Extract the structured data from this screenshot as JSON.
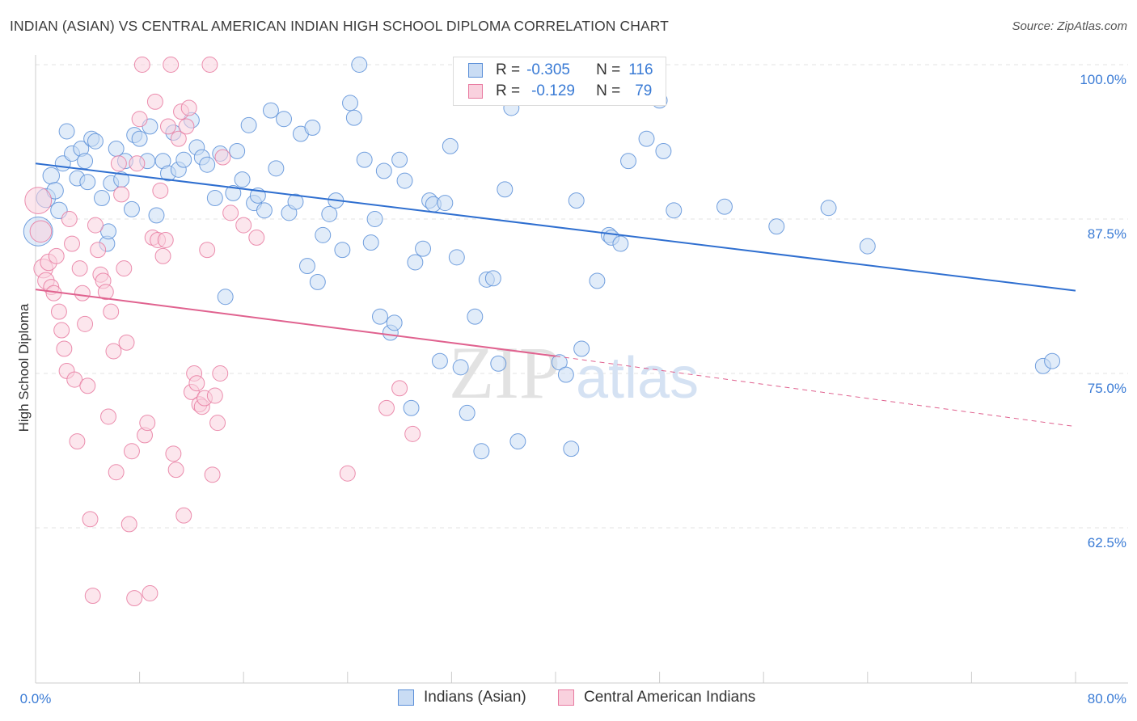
{
  "header": {
    "title": "INDIAN (ASIAN) VS CENTRAL AMERICAN INDIAN HIGH SCHOOL DIPLOMA CORRELATION CHART",
    "source": "Source: ZipAtlas.com"
  },
  "watermark": {
    "zip": "ZIP",
    "atlas": "atlas"
  },
  "colors": {
    "blue": "#5b8fd8",
    "blue_fill": "#c9dcf4",
    "blue_line": "#2f6fd0",
    "pink": "#e87aa0",
    "pink_fill": "#f9d1de",
    "pink_line": "#e0628f",
    "tick_label": "#3a7bd5"
  },
  "legend_top": {
    "rows": [
      {
        "r_label": "R =",
        "r_value": "-0.305",
        "n_label": "N =",
        "n_value": "116"
      },
      {
        "r_label": "R =",
        "r_value": "-0.129",
        "n_label": "N =",
        "n_value": "79"
      }
    ]
  },
  "legend_bottom": {
    "items": [
      {
        "label": "Indians (Asian)"
      },
      {
        "label": "Central American Indians"
      }
    ]
  },
  "chart_data": {
    "type": "scatter",
    "title": "INDIAN (ASIAN) VS CENTRAL AMERICAN INDIAN HIGH SCHOOL DIPLOMA CORRELATION CHART",
    "xlabel": "",
    "ylabel": "High School Diploma",
    "xlim": [
      0,
      80
    ],
    "ylim": [
      50,
      101
    ],
    "x_tick_labels": [
      "0.0%",
      "80.0%"
    ],
    "y_ticks": [
      100,
      87.5,
      75,
      62.5
    ],
    "y_tick_labels": [
      "100.0%",
      "87.5%",
      "75.0%",
      "62.5%"
    ],
    "grid": true,
    "legend_position": "top-center",
    "series": [
      {
        "name": "Indians (Asian)",
        "color": "#5b8fd8",
        "trend": {
          "x": [
            0,
            80
          ],
          "y": [
            92.0,
            81.7
          ]
        },
        "x": [
          0.2,
          0.8,
          1.2,
          1.5,
          1.8,
          2.1,
          2.8,
          3.2,
          3.5,
          3.8,
          4.0,
          4.3,
          4.6,
          5.1,
          5.5,
          5.8,
          6.2,
          6.6,
          6.9,
          7.4,
          7.6,
          8.0,
          8.6,
          8.8,
          9.3,
          9.8,
          10.2,
          10.6,
          11.0,
          11.4,
          12.0,
          12.4,
          12.8,
          13.2,
          13.8,
          14.2,
          14.6,
          15.2,
          15.5,
          15.9,
          16.4,
          16.8,
          17.1,
          17.6,
          18.1,
          18.5,
          19.1,
          19.5,
          20.0,
          20.4,
          20.9,
          21.3,
          21.7,
          22.1,
          22.6,
          23.1,
          23.6,
          24.2,
          24.5,
          24.9,
          25.3,
          25.8,
          26.1,
          26.5,
          26.8,
          27.3,
          27.6,
          28.0,
          28.4,
          28.9,
          29.2,
          29.8,
          30.3,
          30.6,
          31.1,
          31.5,
          31.9,
          32.4,
          32.7,
          33.2,
          33.8,
          34.3,
          34.7,
          35.2,
          35.6,
          36.1,
          36.6,
          37.1,
          37.4,
          37.9,
          38.3,
          38.9,
          39.4,
          39.8,
          40.3,
          40.8,
          41.2,
          41.6,
          42.0,
          43.2,
          44.1,
          44.3,
          45.0,
          45.6,
          47.0,
          48.0,
          48.3,
          49.1,
          53.0,
          57.0,
          61.0,
          64.0,
          77.5,
          78.2,
          2.4,
          5.6
        ],
        "y": [
          86.5,
          89.2,
          91.0,
          89.8,
          88.2,
          92.0,
          92.8,
          90.8,
          93.2,
          92.2,
          90.5,
          94.0,
          93.8,
          89.2,
          85.5,
          90.4,
          93.2,
          90.7,
          92.2,
          88.3,
          94.3,
          94.0,
          92.2,
          95.0,
          87.8,
          92.2,
          91.2,
          94.5,
          91.5,
          92.3,
          95.5,
          93.3,
          92.5,
          91.9,
          89.2,
          92.8,
          81.2,
          89.6,
          93.0,
          90.7,
          95.1,
          88.8,
          89.4,
          88.2,
          96.3,
          91.6,
          95.6,
          88.0,
          88.9,
          94.4,
          83.7,
          94.9,
          82.4,
          86.2,
          87.9,
          89.0,
          85.0,
          96.9,
          95.7,
          100,
          92.3,
          85.6,
          87.5,
          79.6,
          91.4,
          78.3,
          79.1,
          92.3,
          90.6,
          72.2,
          84.0,
          85.1,
          89.0,
          88.7,
          76.0,
          88.8,
          93.4,
          84.4,
          75.5,
          71.8,
          79.6,
          68.7,
          82.6,
          82.7,
          75.8,
          89.9,
          96.5,
          69.5,
          99.5,
          100,
          100,
          98.8,
          100,
          100,
          75.9,
          74.9,
          68.9,
          89.0,
          77.0,
          82.5,
          86.2,
          86.0,
          85.5,
          92.2,
          94.0,
          97.1,
          93.0,
          88.2,
          88.5,
          86.9,
          88.4,
          85.3,
          75.6,
          76.0,
          94.6,
          86.5
        ],
        "sizes": [
          22,
          14,
          12,
          12,
          12,
          11,
          11,
          11,
          11,
          11,
          11,
          11,
          11,
          11,
          11,
          11,
          11,
          11,
          11,
          11,
          11,
          11,
          11,
          11,
          11,
          11,
          11,
          11,
          11,
          11,
          11,
          11,
          11,
          11,
          11,
          11,
          11,
          11,
          11,
          11,
          11,
          11,
          11,
          11,
          11,
          11,
          11,
          11,
          11,
          11,
          11,
          11,
          11,
          11,
          11,
          11,
          11,
          11,
          11,
          11,
          11,
          11,
          11,
          11,
          11,
          11,
          11,
          11,
          11,
          11,
          11,
          11,
          11,
          11,
          11,
          11,
          11,
          11,
          11,
          11,
          11,
          11,
          11,
          11,
          11,
          11,
          11,
          11,
          11,
          11,
          11,
          11,
          11,
          11,
          11,
          11,
          11,
          11,
          11,
          11,
          11,
          11,
          11,
          11,
          11,
          11,
          11,
          11,
          11,
          11,
          11,
          11,
          11,
          11,
          11,
          11
        ]
      },
      {
        "name": "Central American Indians",
        "color": "#e87aa0",
        "trend": {
          "x": [
            0,
            40
          ],
          "y": [
            81.8,
            76.4
          ],
          "dashed_to": [
            80,
            70.7
          ]
        },
        "x": [
          0.2,
          0.4,
          0.6,
          0.8,
          1.0,
          1.2,
          1.4,
          1.6,
          1.8,
          2.0,
          2.2,
          2.4,
          2.6,
          2.8,
          3.0,
          3.2,
          3.4,
          3.6,
          3.8,
          4.0,
          4.2,
          4.4,
          4.6,
          4.8,
          5.0,
          5.2,
          5.4,
          5.6,
          5.8,
          6.0,
          6.2,
          6.4,
          6.6,
          6.8,
          7.0,
          7.2,
          7.4,
          7.6,
          7.8,
          8.0,
          8.2,
          8.4,
          8.6,
          8.8,
          9.0,
          9.2,
          9.4,
          9.6,
          9.8,
          10.0,
          10.2,
          10.4,
          10.6,
          10.8,
          11.0,
          11.2,
          11.4,
          11.6,
          11.8,
          12.0,
          12.2,
          12.4,
          12.6,
          12.8,
          13.0,
          13.2,
          13.4,
          13.6,
          13.8,
          14.0,
          14.2,
          14.4,
          15.0,
          16.0,
          17.0,
          24.0,
          27.0,
          28.0,
          29.0
        ],
        "y": [
          89.0,
          86.5,
          83.5,
          82.5,
          84.0,
          82.0,
          81.5,
          84.5,
          80.0,
          78.5,
          77.0,
          75.2,
          87.5,
          85.5,
          74.5,
          69.5,
          83.5,
          81.5,
          79.0,
          74.0,
          63.2,
          57.0,
          87.0,
          85.0,
          83.0,
          82.5,
          81.6,
          71.5,
          80.0,
          76.8,
          67.0,
          92.0,
          89.5,
          83.5,
          77.5,
          62.8,
          68.7,
          56.8,
          92.0,
          95.6,
          100,
          70.0,
          71.0,
          57.2,
          86.0,
          97.0,
          85.8,
          89.8,
          84.5,
          85.8,
          95.0,
          100,
          68.5,
          67.2,
          94.0,
          96.2,
          63.5,
          95.0,
          96.5,
          73.5,
          75.0,
          74.2,
          72.5,
          72.3,
          73.0,
          85.0,
          100,
          66.8,
          73.2,
          71.0,
          75.0,
          92.5,
          88.0,
          87.0,
          86.0,
          66.9,
          72.2,
          73.8,
          70.1
        ],
        "sizes": [
          20,
          16,
          14,
          12,
          12,
          11,
          11,
          11,
          11,
          11,
          11,
          11,
          11,
          11,
          11,
          11,
          11,
          11,
          11,
          11,
          11,
          11,
          11,
          11,
          11,
          11,
          11,
          11,
          11,
          11,
          11,
          11,
          11,
          11,
          11,
          11,
          11,
          11,
          11,
          11,
          11,
          11,
          11,
          11,
          11,
          11,
          11,
          11,
          11,
          11,
          11,
          11,
          11,
          11,
          11,
          11,
          11,
          11,
          11,
          11,
          11,
          11,
          11,
          11,
          11,
          11,
          11,
          11,
          11,
          11,
          11,
          11,
          11,
          11,
          11,
          11,
          11,
          11,
          11
        ]
      }
    ]
  }
}
